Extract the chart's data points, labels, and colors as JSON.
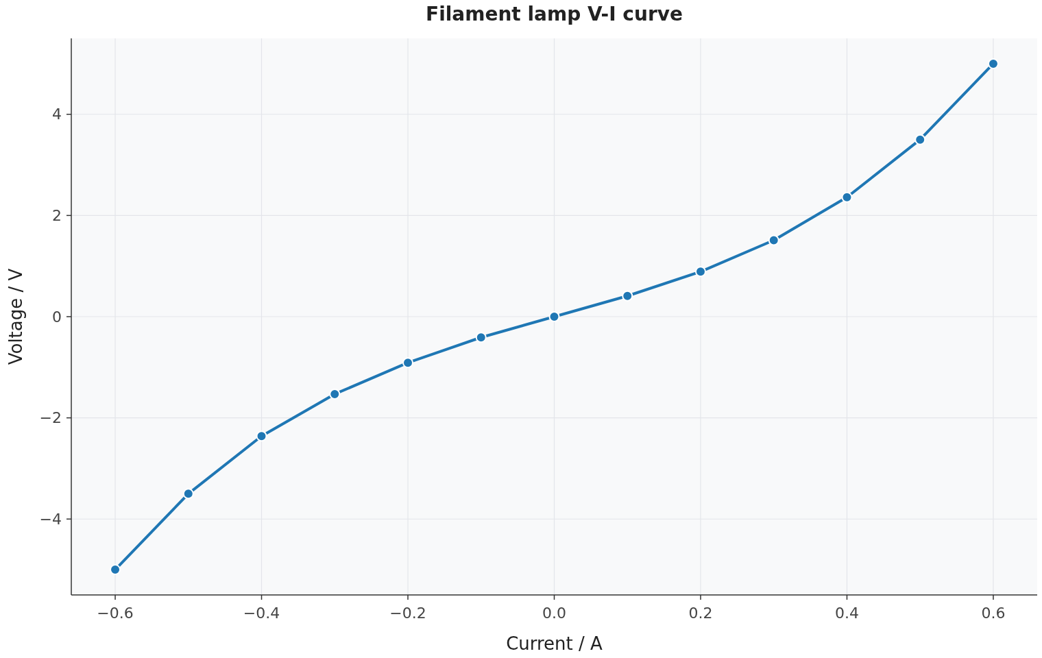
{
  "chart_data": {
    "type": "line",
    "title": "Filament lamp V-I curve",
    "xlabel": "Current / A",
    "ylabel": "Voltage / V",
    "x": [
      -0.6,
      -0.5,
      -0.4,
      -0.3,
      -0.2,
      -0.1,
      0,
      0.1,
      0.2,
      0.3,
      0.4,
      0.5,
      0.6
    ],
    "series": [
      {
        "color": "#1f77b4",
        "values": [
          -5.0,
          -3.5,
          -2.36,
          -1.53,
          -0.91,
          -0.41,
          0,
          0.41,
          0.89,
          1.51,
          2.36,
          3.5,
          5.0
        ]
      }
    ],
    "xlim": [
      -0.66,
      0.66
    ],
    "xticks": [
      {
        "value": -0.6,
        "label": "−0.6"
      },
      {
        "value": -0.4,
        "label": "−0.4"
      },
      {
        "value": -0.2,
        "label": "−0.2"
      },
      {
        "value": 0,
        "label": "0.0"
      },
      {
        "value": 0.2,
        "label": "0.2"
      },
      {
        "value": 0.4,
        "label": "0.4"
      },
      {
        "value": 0.6,
        "label": "0.6"
      }
    ],
    "ylim": [
      -5.5,
      5.5
    ],
    "yticks": [
      {
        "value": -4,
        "label": "−4"
      },
      {
        "value": -2,
        "label": "−2"
      },
      {
        "value": 0,
        "label": "0"
      },
      {
        "value": 2,
        "label": "2"
      },
      {
        "value": 4,
        "label": "4"
      }
    ],
    "grid": true,
    "marker": "circle",
    "line_style": "solid"
  }
}
